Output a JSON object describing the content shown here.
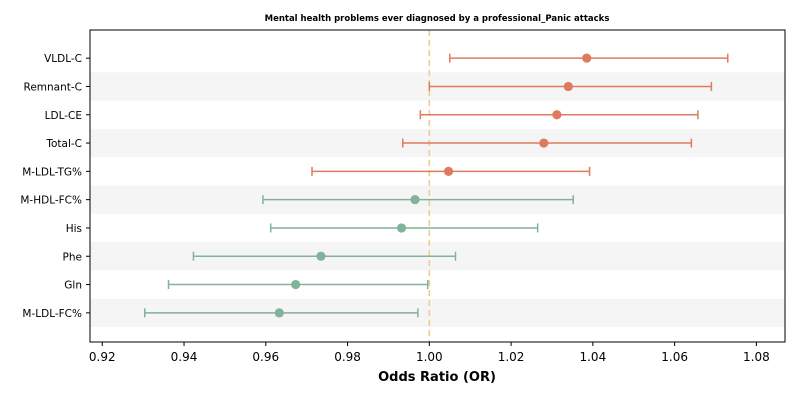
{
  "chart_data": {
    "type": "forest",
    "title": "Mental health problems ever diagnosed by a professional_Panic attacks",
    "xlabel": "Odds Ratio (OR)",
    "xlim": [
      0.917,
      1.087
    ],
    "xticks": [
      0.92,
      0.94,
      0.96,
      0.98,
      1.0,
      1.02,
      1.04,
      1.06,
      1.08
    ],
    "xtick_labels": [
      "0.92",
      "0.94",
      "0.96",
      "0.98",
      "1.00",
      "1.02",
      "1.04",
      "1.06",
      "1.08"
    ],
    "reference_line": 1.0,
    "categories": [
      "VLDL-C",
      "Remnant-C",
      "LDL-CE",
      "Total-C",
      "M-LDL-TG%",
      "M-HDL-FC%",
      "His",
      "Phe",
      "Gln",
      "M-LDL-FC%"
    ],
    "or": [
      1.0385,
      1.034,
      1.0312,
      1.028,
      1.0047,
      0.9965,
      0.9932,
      0.9735,
      0.9673,
      0.9633
    ],
    "ci_low": [
      1.005,
      1.0,
      0.9978,
      0.9935,
      0.9713,
      0.9593,
      0.9612,
      0.9423,
      0.9362,
      0.9304
    ],
    "ci_high": [
      1.073,
      1.069,
      1.0657,
      1.0641,
      1.0392,
      1.0352,
      1.0265,
      1.0064,
      0.9996,
      0.9972
    ],
    "colors": {
      "positive": "#e07a5f",
      "negative": "#81b29a",
      "reference": "#f2cc8f",
      "stripe": "#f5f5f5",
      "axis": "#000000"
    },
    "grid": false,
    "legend": "none"
  }
}
